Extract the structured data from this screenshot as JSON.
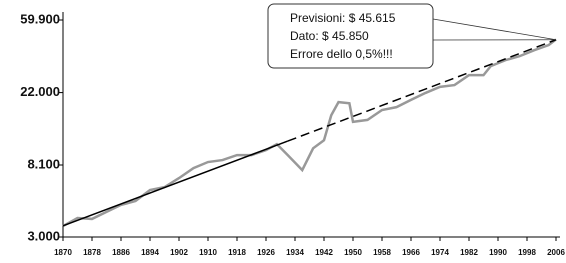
{
  "chart_data": {
    "type": "line",
    "log_scale": true,
    "xlim": [
      1870,
      2006
    ],
    "xticks": [
      1870,
      1878,
      1886,
      1894,
      1902,
      1910,
      1918,
      1926,
      1934,
      1942,
      1950,
      1958,
      1966,
      1974,
      1982,
      1990,
      1998,
      2006
    ],
    "ylim": [
      3000,
      59900
    ],
    "yticks": [
      {
        "value": 3000,
        "label": "3.000"
      },
      {
        "value": 8100,
        "label": "8.100"
      },
      {
        "value": 22000,
        "label": "22.000"
      },
      {
        "value": 59900,
        "label": "59.900"
      }
    ],
    "series": [
      {
        "color": "#999999",
        "x": [
          1870,
          1874,
          1878,
          1882,
          1886,
          1890,
          1894,
          1898,
          1902,
          1906,
          1910,
          1914,
          1918,
          1922,
          1926,
          1929,
          1932,
          1936,
          1939,
          1942,
          1944,
          1946,
          1949,
          1950,
          1954,
          1958,
          1962,
          1966,
          1970,
          1974,
          1978,
          1982,
          1986,
          1988,
          1992,
          1996,
          2000,
          2004,
          2006
        ],
        "values": [
          3490,
          3900,
          3850,
          4240,
          4670,
          4930,
          5730,
          5970,
          6760,
          7760,
          8440,
          8670,
          9290,
          9290,
          9950,
          10800,
          9290,
          7550,
          10200,
          11400,
          16100,
          19300,
          19000,
          14700,
          15100,
          17300,
          18000,
          19900,
          21900,
          23800,
          24400,
          28000,
          28000,
          31700,
          34400,
          36400,
          39500,
          42400,
          45850
        ]
      }
    ],
    "trend": {
      "color": "#000000",
      "x": [
        1870,
        1932,
        2006
      ],
      "values": [
        3500,
        11270,
        45615
      ]
    },
    "annotations": [
      "Previsioni: $ 45.615",
      "Dato: $ 45.850",
      "Errore dello 0,5%!!!"
    ]
  }
}
